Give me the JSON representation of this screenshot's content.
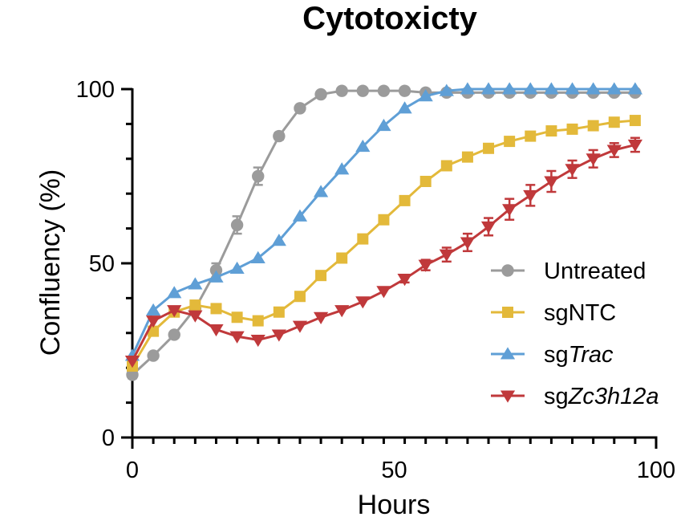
{
  "chart_data": {
    "type": "line",
    "title": "Cytotoxicty",
    "xlabel": "Hours",
    "ylabel": "Confluency (%)",
    "xlim": [
      0,
      100
    ],
    "ylim": [
      0,
      100
    ],
    "x_ticks": [
      "0",
      "50",
      "100"
    ],
    "y_ticks": [
      "0",
      "50",
      "100"
    ],
    "x_minor_step": 4,
    "y_minor_step": 10,
    "grid": false,
    "legend_position": "right",
    "x": [
      0,
      4,
      8,
      12,
      16,
      20,
      24,
      28,
      32,
      36,
      40,
      44,
      48,
      52,
      56,
      60,
      64,
      68,
      72,
      76,
      80,
      84,
      88,
      92,
      96
    ],
    "series": [
      {
        "name": "Untreated",
        "legend_parts": [
          {
            "text": "Untreated",
            "italic": false
          }
        ],
        "color": "#9b9b9b",
        "marker": "circle",
        "values": [
          18,
          23.5,
          29.5,
          37,
          48,
          61,
          75,
          86.5,
          94.5,
          98.5,
          99.5,
          99.5,
          99.5,
          99.5,
          99,
          99,
          99,
          99,
          99,
          99,
          99,
          99,
          99,
          99,
          99
        ],
        "errors": [
          1,
          0.5,
          0.5,
          1,
          2,
          2.5,
          2.5,
          1,
          0.5,
          0.5,
          0.3,
          0.3,
          0.3,
          0.3,
          0.3,
          0.3,
          0.3,
          0.3,
          0.3,
          0.3,
          0.3,
          0.3,
          0.3,
          0.3,
          0.3
        ]
      },
      {
        "name": "sgNTC",
        "legend_parts": [
          {
            "text": "sgNTC",
            "italic": false
          }
        ],
        "color": "#e3b93a",
        "marker": "square",
        "values": [
          20.5,
          30.5,
          36,
          38,
          37,
          34.5,
          33.5,
          36,
          40.5,
          46.5,
          51.5,
          57,
          62.5,
          68,
          73.5,
          78,
          80.5,
          83,
          85,
          86.5,
          88,
          88.5,
          89.5,
          90.5,
          91
        ],
        "errors": [
          0.5,
          0.5,
          0.5,
          0.5,
          0.5,
          0.5,
          0.5,
          0.5,
          0.5,
          0.5,
          0.5,
          0.5,
          0.5,
          0.5,
          0.5,
          0.5,
          0.5,
          0.5,
          0.5,
          0.5,
          0.5,
          0.5,
          0.5,
          0.5,
          0.5
        ]
      },
      {
        "name": "sgTrac",
        "legend_parts": [
          {
            "text": "sg",
            "italic": false
          },
          {
            "text": "Trac",
            "italic": true
          }
        ],
        "color": "#5f9fd6",
        "marker": "triangle-up",
        "values": [
          23.5,
          36.5,
          41.5,
          44,
          46,
          48.5,
          51.5,
          56.5,
          63.5,
          70.5,
          77,
          83.5,
          89.5,
          94.5,
          98,
          99.5,
          100,
          100,
          100,
          100,
          100,
          100,
          100,
          100,
          100
        ],
        "errors": [
          0.5,
          0.5,
          0.5,
          0.5,
          0.5,
          0.5,
          0.5,
          0.5,
          0.5,
          0.5,
          0.5,
          0.5,
          0.5,
          0.5,
          0.5,
          0.5,
          0.3,
          0.3,
          0.3,
          0.3,
          0.3,
          0.3,
          0.3,
          0.3,
          0.3
        ]
      },
      {
        "name": "sgZc3h12a",
        "legend_parts": [
          {
            "text": "sg",
            "italic": false
          },
          {
            "text": "Zc3h12a",
            "italic": true
          }
        ],
        "color": "#c0393b",
        "marker": "triangle-down",
        "values": [
          22,
          33.5,
          36.5,
          35,
          31,
          29,
          28,
          29.5,
          32,
          34.5,
          36.5,
          39,
          42,
          45.5,
          49.5,
          52.5,
          56,
          60.5,
          65.5,
          69.5,
          73.5,
          77,
          80,
          82.5,
          84
        ],
        "errors": [
          0.5,
          0.5,
          0.5,
          0.5,
          0.5,
          0.5,
          0.5,
          0.5,
          0.5,
          0.5,
          0.5,
          0.5,
          0.5,
          1,
          1.5,
          2,
          2.5,
          2.5,
          3,
          3,
          3,
          2.5,
          2.5,
          2,
          2
        ]
      }
    ]
  }
}
